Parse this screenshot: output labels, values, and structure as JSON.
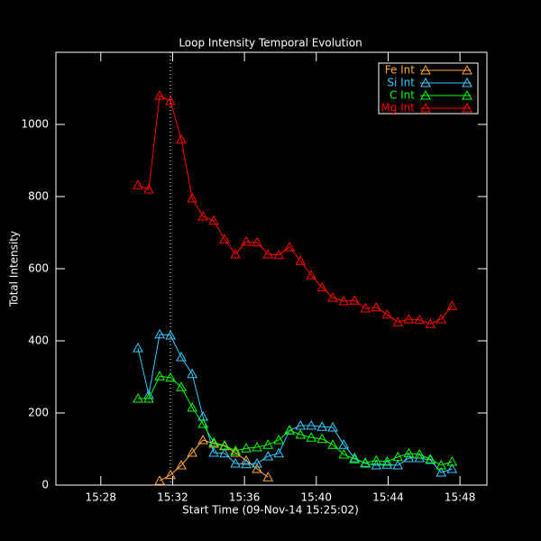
{
  "chart_data": {
    "type": "line",
    "title": "Loop Intensity Temporal Evolution",
    "x_label": "Start Time (09-Nov-14 15:25:02)",
    "y_label": "Total Intensity",
    "x": [
      30.07,
      30.67,
      31.28,
      31.88,
      32.48,
      33.09,
      33.69,
      34.29,
      34.89,
      35.5,
      36.1,
      36.7,
      37.31,
      37.91,
      38.51,
      39.12,
      39.72,
      40.32,
      40.92,
      41.53,
      42.13,
      42.73,
      43.34,
      43.94,
      44.54,
      45.15,
      45.75,
      46.35,
      46.95,
      47.56
    ],
    "series": [
      {
        "name": "Fe Int",
        "color": "#ffa83c",
        "values": [
          null,
          null,
          12,
          28,
          55,
          90,
          125,
          115,
          108,
          90,
          68,
          45,
          22,
          null,
          null,
          null,
          null,
          null,
          null,
          null,
          null,
          null,
          null,
          null,
          null,
          null,
          null,
          null,
          null,
          null
        ]
      },
      {
        "name": "Si Int",
        "color": "#33ccff",
        "values": [
          380,
          250,
          418,
          415,
          355,
          308,
          190,
          90,
          88,
          60,
          58,
          60,
          80,
          88,
          152,
          165,
          165,
          162,
          160,
          112,
          75,
          60,
          55,
          57,
          55,
          75,
          75,
          70,
          35,
          45
        ]
      },
      {
        "name": "C Int",
        "color": "#00ff00",
        "values": [
          240,
          240,
          302,
          298,
          272,
          215,
          170,
          118,
          110,
          95,
          102,
          105,
          112,
          125,
          152,
          140,
          132,
          128,
          112,
          85,
          72,
          62,
          68,
          65,
          78,
          88,
          85,
          72,
          55,
          65
        ]
      },
      {
        "name": "Mg Int",
        "color": "#ff0000",
        "values": [
          832,
          820,
          1080,
          1065,
          958,
          795,
          745,
          733,
          682,
          640,
          675,
          673,
          640,
          638,
          660,
          622,
          582,
          548,
          520,
          510,
          512,
          490,
          493,
          473,
          452,
          460,
          458,
          447,
          460,
          497
        ]
      }
    ],
    "xlim": [
      25.5,
      49.5
    ],
    "xticks": [
      {
        "value": 28,
        "label": "15:28"
      },
      {
        "value": 32,
        "label": "15:32"
      },
      {
        "value": 36,
        "label": "15:36"
      },
      {
        "value": 40,
        "label": "15:40"
      },
      {
        "value": 44,
        "label": "15:44"
      },
      {
        "value": 48,
        "label": "15:48"
      }
    ],
    "ylim": [
      0,
      1200
    ],
    "yticks": [
      0,
      200,
      400,
      600,
      800,
      1000
    ],
    "vline_x": 31.88,
    "legend": "top-right"
  }
}
